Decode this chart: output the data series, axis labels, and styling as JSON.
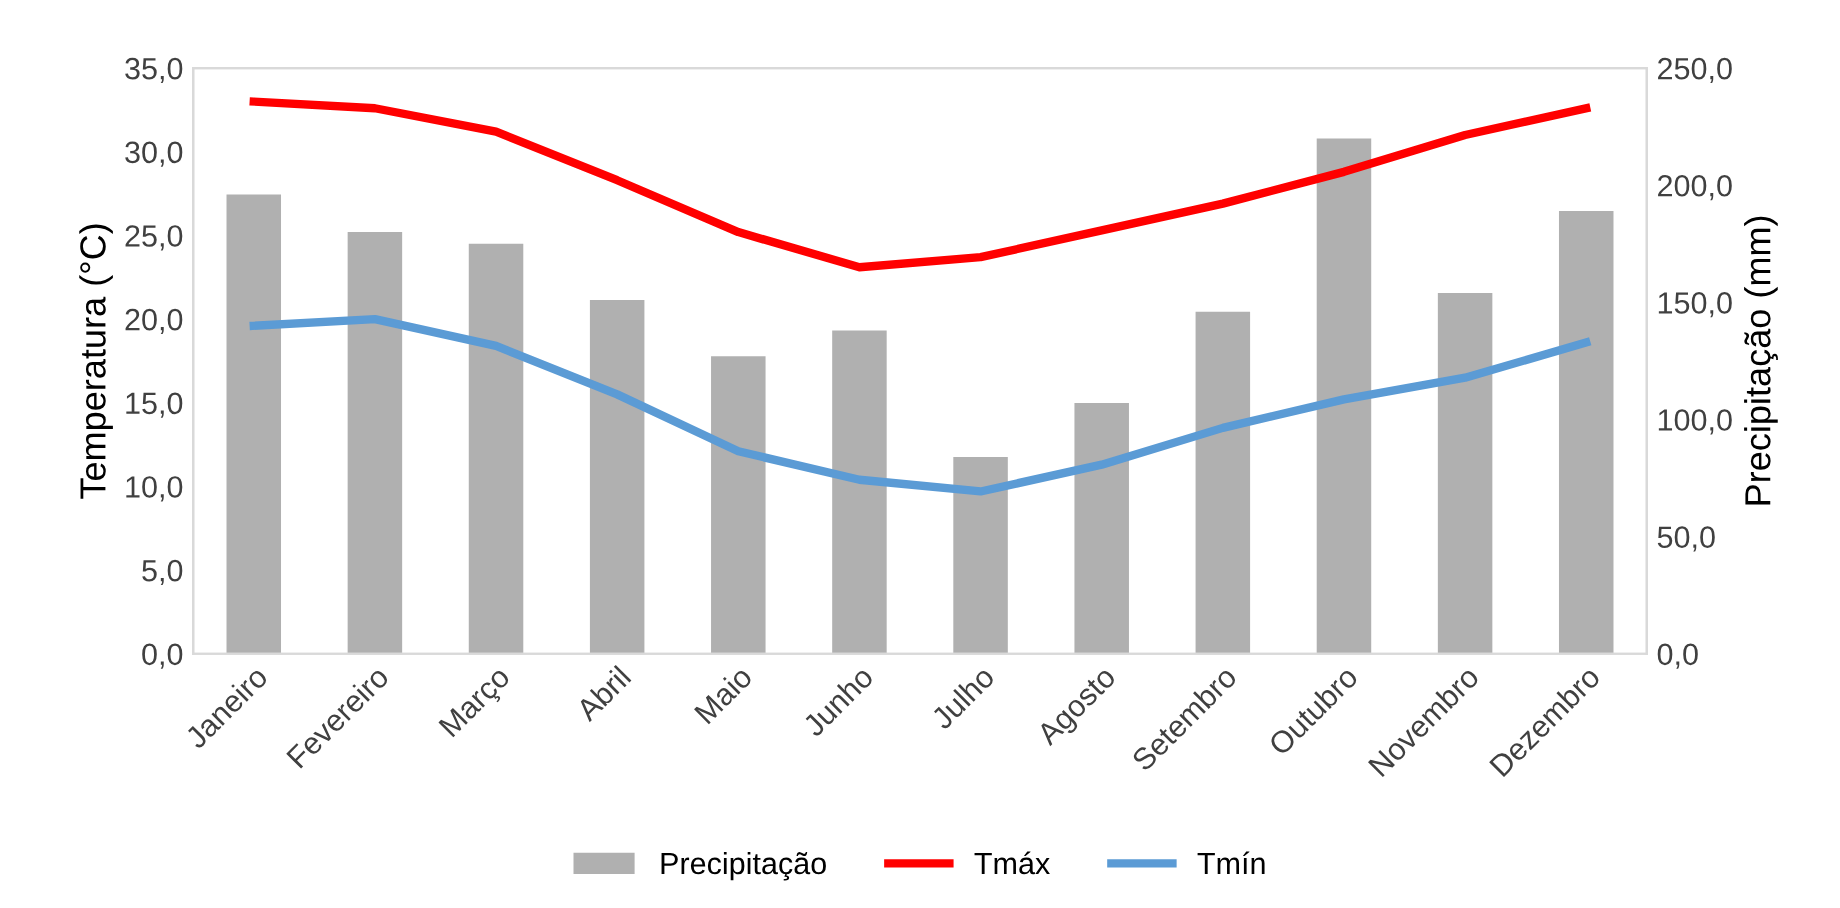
{
  "chart_data": {
    "type": "bar",
    "ylabel": "Temperatura (°C)",
    "y2label": "Precipitação (mm)",
    "categories": [
      "Janeiro",
      "Fevereiro",
      "Março",
      "Abril",
      "Maio",
      "Junho",
      "Julho",
      "Agosto",
      "Setembro",
      "Outubro",
      "Novembro",
      "Dezembro"
    ],
    "series": [
      {
        "name": "Precipitação",
        "axis": "y2",
        "color": "#b0b0b0",
        "values": [
          196,
          180,
          175,
          151,
          127,
          138,
          84,
          107,
          146,
          220,
          154,
          189
        ]
      },
      {
        "name": "Tmáx",
        "type": "line",
        "axis": "y",
        "color": "#ff0000",
        "values": [
          33.0,
          32.6,
          31.2,
          28.3,
          25.2,
          23.1,
          23.7,
          25.3,
          26.9,
          28.8,
          31.0,
          32.6
        ]
      },
      {
        "name": "Tmín",
        "type": "line",
        "axis": "y",
        "color": "#5b9bd5",
        "values": [
          19.6,
          20.0,
          18.4,
          15.5,
          12.1,
          10.4,
          9.7,
          11.3,
          13.5,
          15.2,
          16.5,
          18.6
        ]
      }
    ],
    "ylim": [
      0,
      35
    ],
    "yticks": [
      {
        "value": 0,
        "label": "0,0"
      },
      {
        "value": 5,
        "label": "5,0"
      },
      {
        "value": 10,
        "label": "10,0"
      },
      {
        "value": 15,
        "label": "15,0"
      },
      {
        "value": 20,
        "label": "20,0"
      },
      {
        "value": 25,
        "label": "25,0"
      },
      {
        "value": 30,
        "label": "30,0"
      },
      {
        "value": 35,
        "label": "35,0"
      }
    ],
    "y2lim": [
      0,
      250
    ],
    "y2ticks": [
      {
        "value": 0,
        "label": "0,0"
      },
      {
        "value": 50,
        "label": "50,0"
      },
      {
        "value": 100,
        "label": "100,0"
      },
      {
        "value": 150,
        "label": "150,0"
      },
      {
        "value": 200,
        "label": "200,0"
      },
      {
        "value": 250,
        "label": "250,0"
      }
    ],
    "grid": false,
    "legend": "bottom",
    "marker": "none",
    "line_style": "solid"
  }
}
